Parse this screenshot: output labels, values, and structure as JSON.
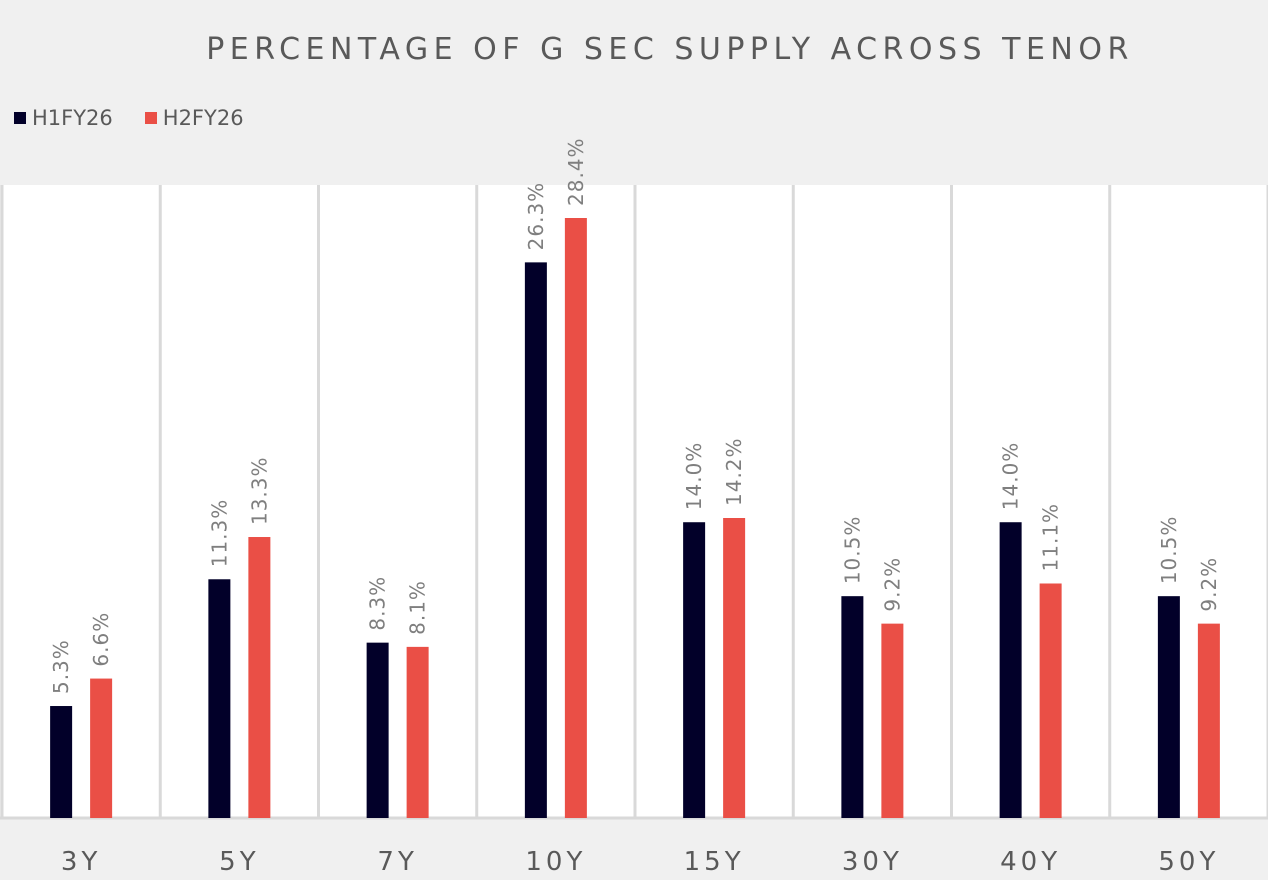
{
  "chart_data": {
    "type": "bar",
    "title": "PERCENTAGE OF G SEC SUPPLY ACROSS TENOR",
    "categories": [
      "3Y",
      "5Y",
      "7Y",
      "10Y",
      "15Y",
      "30Y",
      "40Y",
      "50Y"
    ],
    "series": [
      {
        "name": "H1FY26",
        "color": "#020029",
        "values": [
          5.3,
          11.3,
          8.3,
          26.3,
          14.0,
          10.5,
          14.0,
          10.5
        ],
        "labels": [
          "5.3%",
          "11.3%",
          "8.3%",
          "26.3%",
          "14.0%",
          "10.5%",
          "14.0%",
          "10.5%"
        ]
      },
      {
        "name": "H2FY26",
        "color": "#ea4f46",
        "values": [
          6.6,
          13.3,
          8.1,
          28.4,
          14.2,
          9.2,
          11.1,
          9.2
        ],
        "labels": [
          "6.6%",
          "13.3%",
          "8.1%",
          "28.4%",
          "14.2%",
          "9.2%",
          "11.1%",
          "9.2%"
        ]
      }
    ],
    "xlabel": "",
    "ylabel": "",
    "ylim": [
      0,
      28.4
    ],
    "grid": false,
    "legend_position": "top-left",
    "data_labels": "rotated, above bars"
  }
}
